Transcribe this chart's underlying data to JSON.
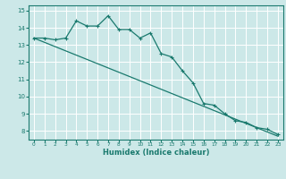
{
  "xlabel": "Humidex (Indice chaleur)",
  "line1_x": [
    0,
    1,
    2,
    3,
    4,
    5,
    6,
    7,
    8,
    9,
    10,
    11,
    12,
    13,
    14,
    15,
    16,
    17,
    18,
    19,
    20,
    21,
    22,
    23
  ],
  "line1_y": [
    13.4,
    13.4,
    13.3,
    13.4,
    14.4,
    14.1,
    14.1,
    14.7,
    13.9,
    13.9,
    13.4,
    13.7,
    12.5,
    12.3,
    11.5,
    10.8,
    9.6,
    9.5,
    9.0,
    8.6,
    8.5,
    8.2,
    8.1,
    7.8
  ],
  "line2_x": [
    0,
    23
  ],
  "line2_y": [
    13.4,
    7.7
  ],
  "line_color": "#1a7a6e",
  "bg_color": "#cce8e8",
  "grid_color": "#ffffff",
  "xlim": [
    -0.5,
    23.5
  ],
  "ylim": [
    7.5,
    15.3
  ],
  "yticks": [
    8,
    9,
    10,
    11,
    12,
    13,
    14,
    15
  ],
  "marker": "+",
  "markersize": 3,
  "linewidth": 0.9
}
